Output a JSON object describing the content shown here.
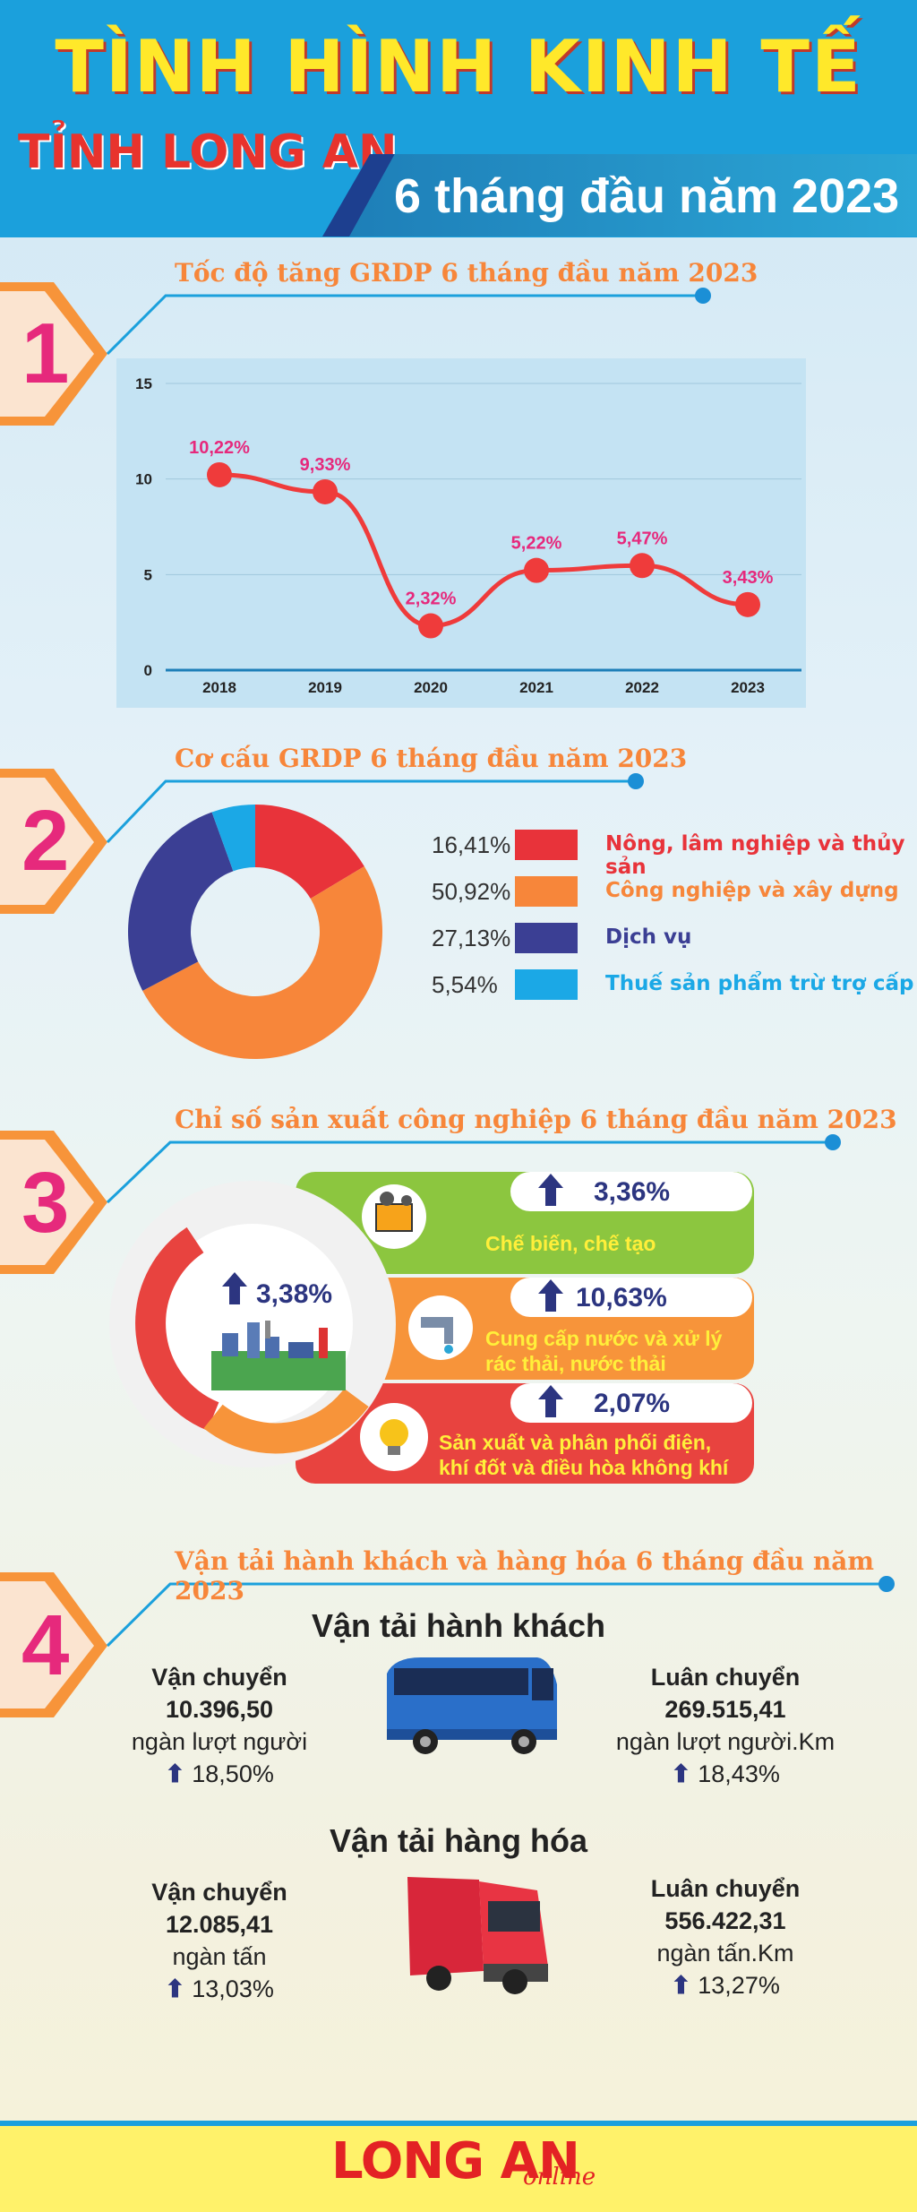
{
  "header": {
    "title": "TÌNH HÌNH KINH TẾ",
    "subtitle": "TỈNH LONG AN",
    "period": "6 tháng đầu năm 2023"
  },
  "section1": {
    "number": "1",
    "title": "Tốc độ tăng GRDP 6 tháng đầu năm 2023",
    "y_ticks": [
      "0",
      "5",
      "10",
      "15"
    ]
  },
  "chart_data": {
    "type": "line",
    "title": "Tốc độ tăng GRDP 6 tháng đầu năm 2023",
    "categories": [
      "2018",
      "2019",
      "2020",
      "2021",
      "2022",
      "2023"
    ],
    "values": [
      10.22,
      9.33,
      2.32,
      5.22,
      5.47,
      3.43
    ],
    "labels": [
      "10,22%",
      "9,33%",
      "2,32%",
      "5,22%",
      "5,47%",
      "3,43%"
    ],
    "ylim": [
      0,
      15
    ],
    "grid": true,
    "color": "#ef3b3b",
    "label_color": "#e6297c"
  },
  "section2": {
    "number": "2",
    "title": "Cơ cấu GRDP 6 tháng đầu năm 2023",
    "items": [
      {
        "pct": "16,41%",
        "value": 16.41,
        "label": "Nông, lâm nghiệp và thủy sản",
        "color": "#e8333a"
      },
      {
        "pct": "50,92%",
        "value": 50.92,
        "label": "Công nghiệp và xây dựng",
        "color": "#f7863a"
      },
      {
        "pct": "27,13%",
        "value": 27.13,
        "label": "Dịch vụ",
        "color": "#3b3f94"
      },
      {
        "pct": "5,54%",
        "value": 5.54,
        "label": "Thuế sản phẩm trừ trợ cấp",
        "color": "#1ba8e6"
      }
    ]
  },
  "section3": {
    "number": "3",
    "title": "Chỉ số sản xuất công nghiệp 6 tháng đầu năm 2023",
    "overall": "3,38%",
    "items": [
      {
        "pct": "3,36%",
        "label": "Chế biến, chế tạo",
        "color": "#8cc63f"
      },
      {
        "pct": "10,63%",
        "label": "Cung cấp nước và xử lý rác thải, nước thải",
        "color": "#f7943a"
      },
      {
        "pct": "2,07%",
        "label": "Sản xuất và phân phối điện, khí đốt và điều hòa không khí",
        "color": "#e8433f"
      }
    ]
  },
  "section4": {
    "number": "4",
    "title": "Vận tải hành khách và hàng hóa 6 tháng đầu năm 2023",
    "passenger": {
      "heading": "Vận tải hành khách",
      "left": {
        "title": "Vận chuyển",
        "value": "10.396,50",
        "unit": "ngàn lượt người",
        "growth": "18,50%"
      },
      "right": {
        "title": "Luân chuyển",
        "value": "269.515,41",
        "unit": "ngàn lượt người.Km",
        "growth": "18,43%"
      }
    },
    "cargo": {
      "heading": "Vận tải hàng hóa",
      "left": {
        "title": "Vận chuyển",
        "value": "12.085,41",
        "unit": "ngàn tấn",
        "growth": "13,03%"
      },
      "right": {
        "title": "Luân chuyển",
        "value": "556.422,31",
        "unit": "ngàn tấn.Km",
        "growth": "13,27%"
      }
    }
  },
  "footer": {
    "logo": "LONG AN",
    "logo_suffix": "online"
  }
}
